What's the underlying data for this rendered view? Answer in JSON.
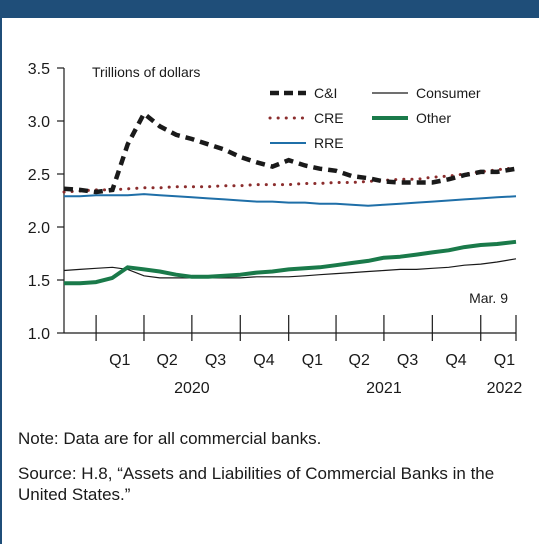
{
  "colors": {
    "frame": "#1f4e79",
    "ci": "#1a1a1a",
    "cre": "#8b2d2d",
    "rre": "#1f6fa8",
    "consumer": "#1a1a1a",
    "other": "#1a7a4a"
  },
  "notes": {
    "note": "Note: Data are for all commercial banks.",
    "source": "Source: H.8, “Assets and Liabilities of Commercial Banks in the United States.”"
  },
  "chart_data": {
    "type": "line",
    "units_label": "Trillions of dollars",
    "ylim": [
      1.0,
      3.5
    ],
    "yticks": [
      1.0,
      1.5,
      2.0,
      2.5,
      3.0,
      3.5
    ],
    "ytick_labels": [
      "1.0",
      "1.5",
      "2.0",
      "2.5",
      "3.0",
      "3.5"
    ],
    "x_range": [
      "2019-11-01",
      "2022-03-09"
    ],
    "quarter_labels": [
      {
        "label": "Q1",
        "date": "2020-02-15"
      },
      {
        "label": "Q2",
        "date": "2020-05-15"
      },
      {
        "label": "Q3",
        "date": "2020-08-15"
      },
      {
        "label": "Q4",
        "date": "2020-11-15"
      },
      {
        "label": "Q1",
        "date": "2021-02-15"
      },
      {
        "label": "Q2",
        "date": "2021-05-15"
      },
      {
        "label": "Q3",
        "date": "2021-08-15"
      },
      {
        "label": "Q4",
        "date": "2021-11-15"
      },
      {
        "label": "Q1",
        "date": "2022-02-15"
      }
    ],
    "quarter_ticks": [
      "2020-01-01",
      "2020-04-01",
      "2020-07-01",
      "2020-10-01",
      "2021-01-01",
      "2021-04-01",
      "2021-07-01",
      "2021-10-01",
      "2022-01-01"
    ],
    "year_labels": [
      {
        "label": "2020",
        "date": "2020-07-01"
      },
      {
        "label": "2021",
        "date": "2021-07-01"
      },
      {
        "label": "2022",
        "date": "2022-02-15"
      }
    ],
    "annotation": "Mar. 9",
    "x": [
      "2019-11-01",
      "2019-12-01",
      "2020-01-01",
      "2020-02-01",
      "2020-03-01",
      "2020-04-01",
      "2020-05-01",
      "2020-06-01",
      "2020-07-01",
      "2020-08-01",
      "2020-09-01",
      "2020-10-01",
      "2020-11-01",
      "2020-12-01",
      "2021-01-01",
      "2021-02-01",
      "2021-03-01",
      "2021-04-01",
      "2021-05-01",
      "2021-06-01",
      "2021-07-01",
      "2021-08-01",
      "2021-09-01",
      "2021-10-01",
      "2021-11-01",
      "2021-12-01",
      "2022-01-01",
      "2022-02-01",
      "2022-03-09"
    ],
    "series": [
      {
        "name": "C&I",
        "key": "ci",
        "style": "dashed",
        "values": [
          2.36,
          2.35,
          2.33,
          2.35,
          2.78,
          3.07,
          2.95,
          2.87,
          2.83,
          2.78,
          2.73,
          2.66,
          2.61,
          2.57,
          2.63,
          2.58,
          2.55,
          2.53,
          2.48,
          2.46,
          2.43,
          2.42,
          2.42,
          2.42,
          2.45,
          2.49,
          2.52,
          2.52,
          2.55
        ]
      },
      {
        "name": "CRE",
        "key": "cre",
        "style": "dotted",
        "values": [
          2.33,
          2.34,
          2.35,
          2.35,
          2.36,
          2.37,
          2.37,
          2.38,
          2.38,
          2.38,
          2.39,
          2.39,
          2.4,
          2.4,
          2.4,
          2.41,
          2.41,
          2.42,
          2.42,
          2.43,
          2.44,
          2.45,
          2.45,
          2.47,
          2.48,
          2.5,
          2.52,
          2.54,
          2.56
        ]
      },
      {
        "name": "Consumer",
        "key": "consumer",
        "style": "thin",
        "values": [
          1.59,
          1.6,
          1.61,
          1.62,
          1.6,
          1.54,
          1.52,
          1.52,
          1.52,
          1.52,
          1.52,
          1.52,
          1.53,
          1.53,
          1.53,
          1.54,
          1.55,
          1.56,
          1.57,
          1.58,
          1.59,
          1.6,
          1.6,
          1.61,
          1.62,
          1.64,
          1.65,
          1.67,
          1.7
        ]
      },
      {
        "name": "RRE",
        "key": "rre",
        "style": "solid",
        "values": [
          2.29,
          2.29,
          2.3,
          2.3,
          2.3,
          2.31,
          2.3,
          2.29,
          2.28,
          2.27,
          2.26,
          2.25,
          2.24,
          2.24,
          2.23,
          2.23,
          2.22,
          2.22,
          2.21,
          2.2,
          2.21,
          2.22,
          2.23,
          2.24,
          2.25,
          2.26,
          2.27,
          2.28,
          2.29
        ]
      },
      {
        "name": "Other",
        "key": "other",
        "style": "thick",
        "values": [
          1.47,
          1.47,
          1.48,
          1.52,
          1.62,
          1.6,
          1.58,
          1.55,
          1.53,
          1.53,
          1.54,
          1.55,
          1.57,
          1.58,
          1.6,
          1.61,
          1.62,
          1.64,
          1.66,
          1.68,
          1.71,
          1.72,
          1.74,
          1.76,
          1.78,
          1.81,
          1.83,
          1.84,
          1.86
        ]
      }
    ],
    "legend": [
      "C&I",
      "Consumer",
      "CRE",
      "Other",
      "RRE"
    ]
  }
}
